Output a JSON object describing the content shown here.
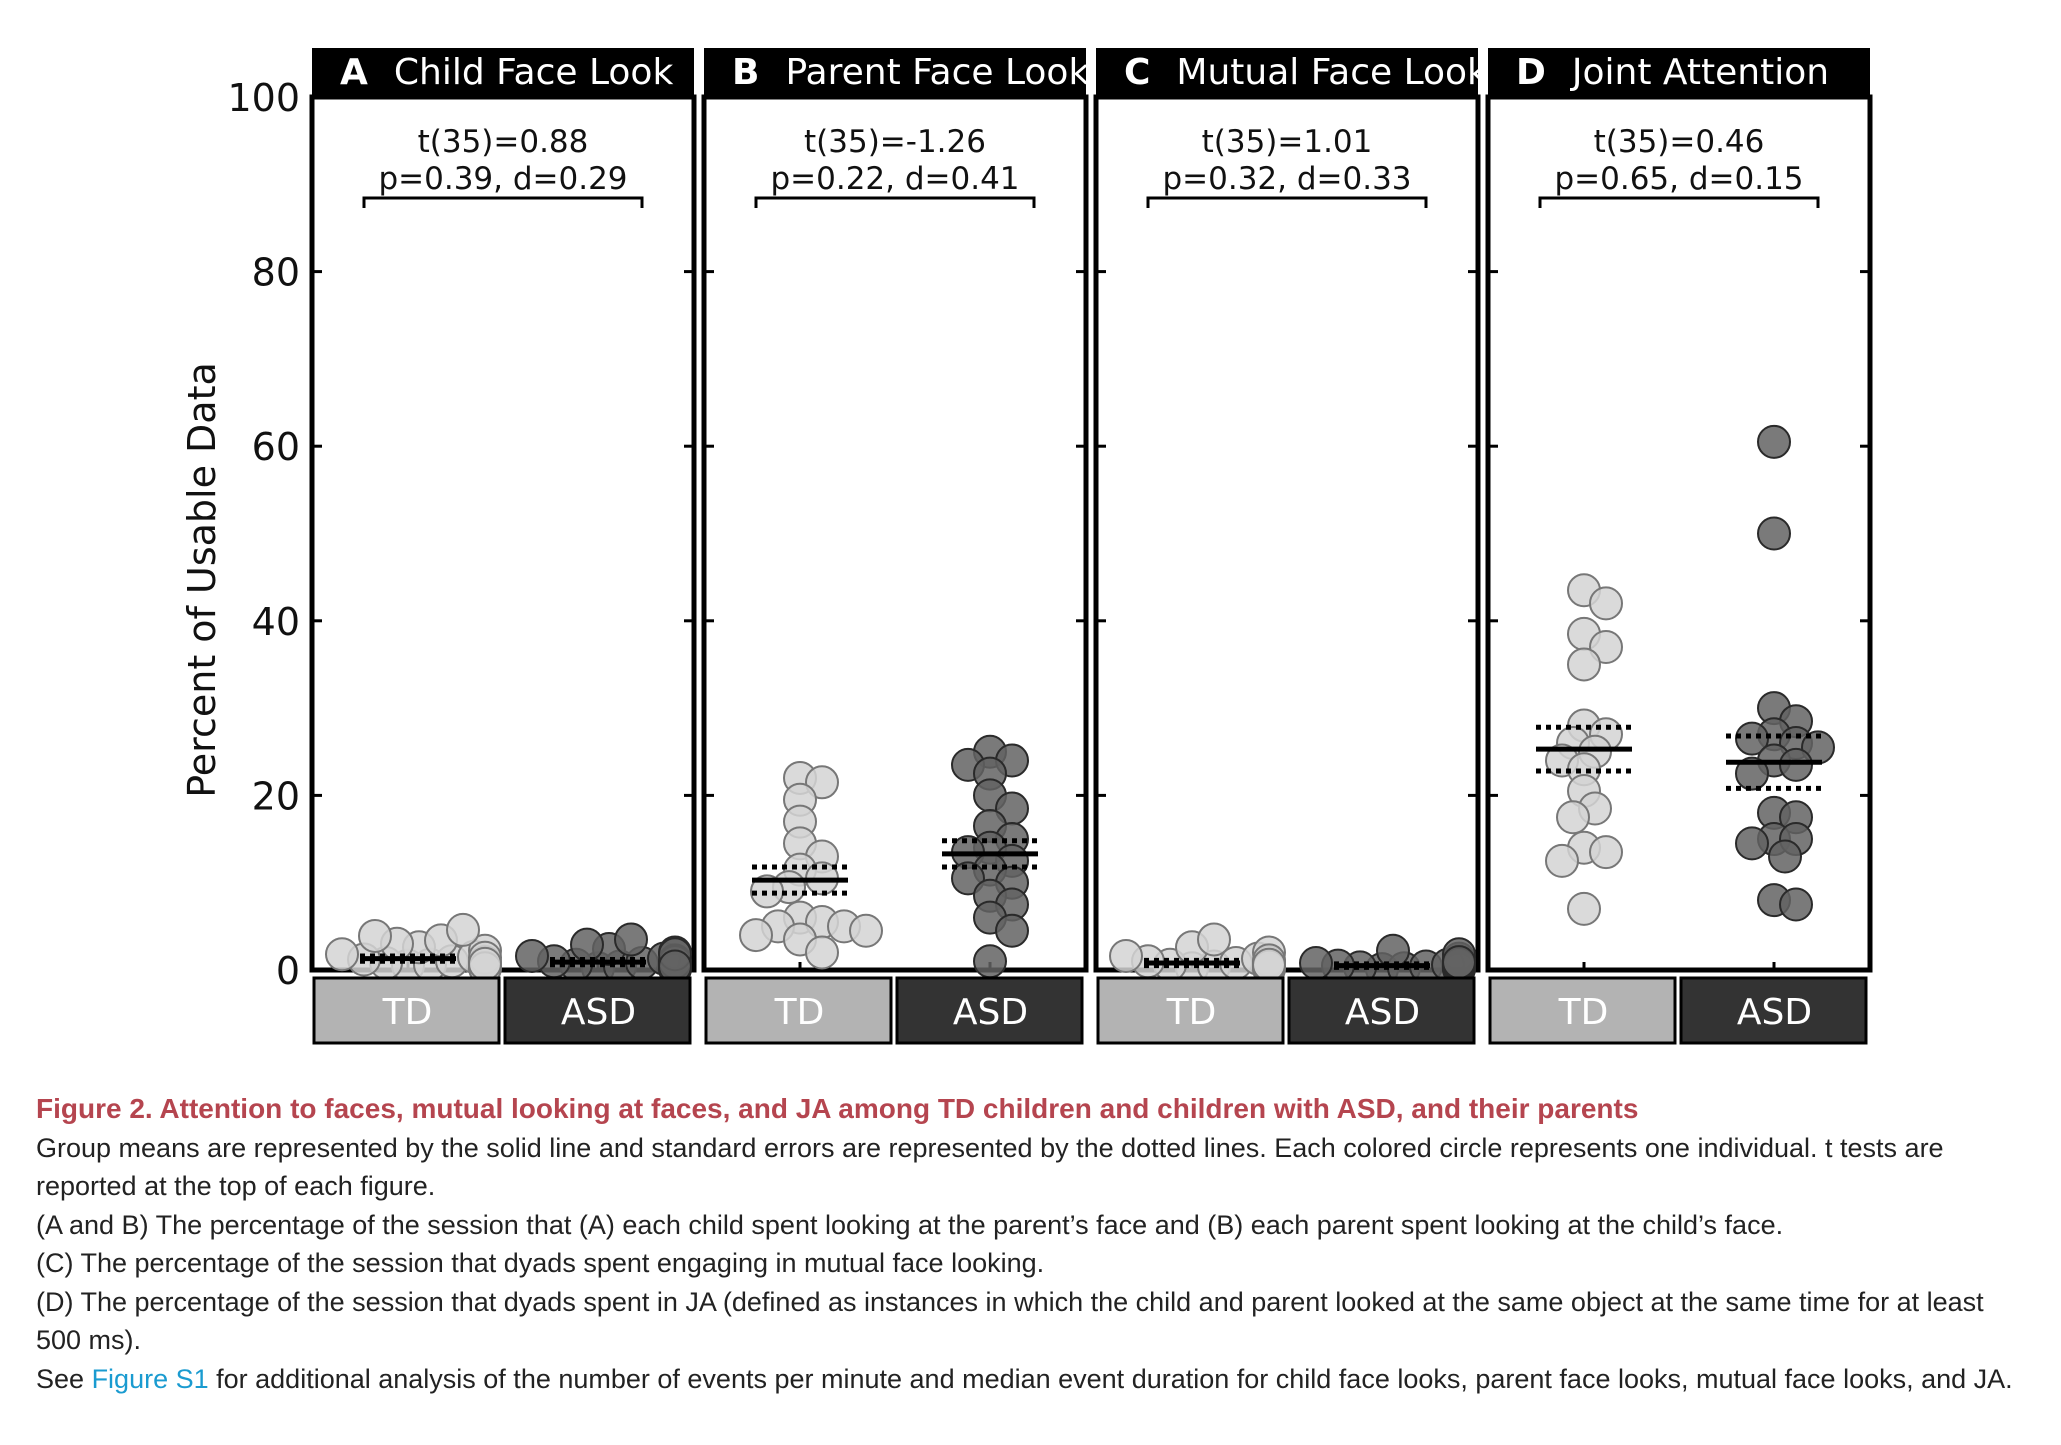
{
  "chart_data": {
    "type": "scatter",
    "ylabel": "Percent of Usable Data",
    "ylim": [
      0,
      100
    ],
    "yticks": [
      0,
      20,
      40,
      60,
      80,
      100
    ],
    "groups": [
      "TD",
      "ASD"
    ],
    "colors": {
      "TD": "#b3b3b3",
      "ASD": "#333333",
      "td_point": "#d4d4d4",
      "asd_point": "#636363"
    },
    "panels": [
      {
        "letter": "A",
        "title": "Child Face Look",
        "stat_line1": "t(35)=0.88",
        "stat_line2": "p=0.39, d=0.29",
        "TD": {
          "mean": 1.3,
          "se_low": 1.0,
          "se_high": 1.6,
          "values": [
            0.5,
            0.6,
            0.8,
            1.0,
            1.2,
            1.5,
            1.8,
            2.2,
            2.6,
            3.0,
            3.4,
            3.9,
            4.6,
            0.3,
            0.9,
            1.4,
            0.2,
            0.7
          ]
        },
        "ASD": {
          "mean": 0.9,
          "se_low": 0.6,
          "se_high": 1.2,
          "values": [
            0.2,
            0.4,
            0.6,
            0.8,
            1.0,
            1.3,
            1.6,
            2.0,
            2.4,
            2.9,
            3.5,
            0.3,
            0.5,
            0.7,
            1.1,
            0.1,
            0.9,
            1.8,
            0.4
          ]
        }
      },
      {
        "letter": "B",
        "title": "Parent Face Look",
        "stat_line1": "t(35)=-1.26",
        "stat_line2": "p=0.22, d=0.41",
        "TD": {
          "mean": 10.3,
          "se_low": 8.8,
          "se_high": 11.8,
          "values": [
            22,
            21.5,
            19.5,
            17,
            14.5,
            13,
            11.5,
            10.5,
            9.5,
            9,
            6,
            5.5,
            5,
            5,
            4,
            3.5,
            2,
            4.5
          ]
        },
        "ASD": {
          "mean": 13.3,
          "se_low": 11.8,
          "se_high": 14.8,
          "values": [
            25,
            24,
            23.5,
            22.5,
            20,
            18.5,
            16.5,
            15,
            14,
            13.5,
            12.5,
            11.5,
            10.5,
            10,
            8.5,
            7.5,
            6,
            4.5,
            1
          ]
        }
      },
      {
        "letter": "C",
        "title": "Mutual Face Look",
        "stat_line1": "t(35)=1.01",
        "stat_line2": "p=0.32, d=0.33",
        "TD": {
          "mean": 0.8,
          "se_low": 0.5,
          "se_high": 1.1,
          "values": [
            0.2,
            0.4,
            0.6,
            0.8,
            1.0,
            1.3,
            1.6,
            2.0,
            2.6,
            3.5,
            0.3,
            0.5,
            0.7,
            0.9,
            0.1,
            1.1,
            0.4,
            0.6
          ]
        },
        "ASD": {
          "mean": 0.5,
          "se_low": 0.3,
          "se_high": 0.7,
          "values": [
            0.1,
            0.2,
            0.3,
            0.4,
            0.5,
            0.6,
            0.8,
            1.0,
            1.3,
            1.8,
            2.2,
            0.2,
            0.4,
            0.6,
            0.1,
            0.3,
            0.5,
            0.7,
            0.9
          ]
        }
      },
      {
        "letter": "D",
        "title": "Joint Attention",
        "stat_line1": "t(35)=0.46",
        "stat_line2": "p=0.65, d=0.15",
        "TD": {
          "mean": 25.3,
          "se_low": 22.8,
          "se_high": 27.8,
          "values": [
            43.5,
            42,
            38.5,
            37,
            35,
            28,
            27,
            26,
            25,
            24,
            23,
            20.5,
            18.5,
            17.5,
            14,
            13.5,
            12.5,
            7
          ]
        },
        "ASD": {
          "mean": 23.8,
          "se_low": 20.8,
          "se_high": 26.8,
          "values": [
            60.5,
            50,
            30,
            28.5,
            27,
            26.5,
            26,
            25.5,
            24,
            23.5,
            22.5,
            18,
            17.5,
            15,
            15,
            14.5,
            13,
            8,
            7.5
          ]
        }
      }
    ]
  },
  "caption": {
    "title": "Figure 2. Attention to faces, mutual looking at faces, and JA among TD children and children with ASD, and their parents",
    "line1": "Group means are represented by the solid line and standard errors are represented by the dotted lines. Each colored circle represents one individual. t tests are reported at the top of each figure.",
    "line2": "(A and B) The percentage of the session that (A) each child spent looking at the parent’s face and (B) each parent spent looking at the child’s face.",
    "line3": "(C) The percentage of the session that dyads spent engaging in mutual face looking.",
    "line4": "(D) The percentage of the session that dyads spent in JA (defined as instances in which the child and parent looked at the same object at the same time for at least 500 ms).",
    "line5_prefix": "See",
    "line5_link": "Figure S1",
    "line5_suffix": "for additional analysis of the number of events per minute and median event duration for child face looks, parent face looks, mutual face looks, and JA."
  }
}
